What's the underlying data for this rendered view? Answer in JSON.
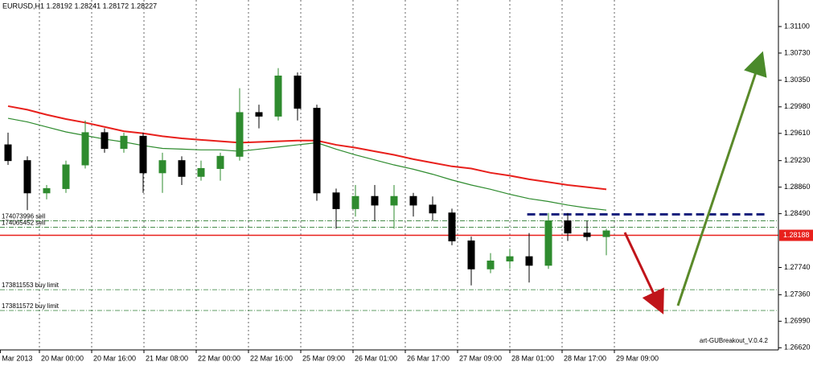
{
  "chart_data": {
    "type": "candlestick",
    "title": "EURUSD,H1  1.28192 1.28241 1.28172 1.28227",
    "footer": "art-GUBreakout_V.0.4.2",
    "bull_color": "#2e8b2e",
    "bear_color": "#000000",
    "open": [
      1.2945,
      1.2923,
      1.2878,
      1.2884,
      1.2917,
      1.2962,
      1.294,
      1.2957,
      1.2906,
      1.2923,
      1.2901,
      1.2912,
      1.2929,
      1.299,
      1.2985,
      1.3041,
      1.2996,
      1.2878,
      1.2856,
      1.2873,
      1.2861,
      1.2873,
      1.2861,
      1.285,
      1.2811,
      1.2772,
      1.2783,
      1.2789,
      1.2777,
      1.2839,
      1.2822,
      1.2817
    ],
    "high": [
      1.2962,
      1.2929,
      1.2889,
      1.2923,
      1.2979,
      1.2968,
      1.2962,
      1.2962,
      1.2934,
      1.2929,
      1.2923,
      1.2934,
      1.3024,
      1.3001,
      1.3052,
      1.3046,
      1.3001,
      1.2884,
      1.2889,
      1.2889,
      1.2889,
      1.2878,
      1.2873,
      1.2856,
      1.2817,
      1.2794,
      1.28,
      1.2822,
      1.285,
      1.285,
      1.2839,
      1.2828
    ],
    "low": [
      1.2917,
      1.2854,
      1.2869,
      1.2878,
      1.2912,
      1.2934,
      1.2934,
      1.2878,
      1.2878,
      1.2889,
      1.2895,
      1.2895,
      1.2923,
      1.2968,
      1.2979,
      1.2979,
      1.2867,
      1.2828,
      1.2845,
      1.2839,
      1.2828,
      1.2845,
      1.2839,
      1.2805,
      1.2749,
      1.2766,
      1.2772,
      1.2753,
      1.2772,
      1.2811,
      1.2811,
      1.2791
    ],
    "close": [
      1.2923,
      1.2878,
      1.2884,
      1.2917,
      1.2962,
      1.294,
      1.2957,
      1.2906,
      1.2923,
      1.2901,
      1.2912,
      1.2929,
      1.299,
      1.2985,
      1.3041,
      1.2996,
      1.2878,
      1.2856,
      1.2873,
      1.2861,
      1.2873,
      1.2861,
      1.285,
      1.2811,
      1.2772,
      1.2783,
      1.2789,
      1.2777,
      1.2839,
      1.2822,
      1.2817,
      1.2825
    ],
    "ma": [
      {
        "color": "#e8201c",
        "values": [
          1.2999,
          1.2994,
          1.2987,
          1.2981,
          1.2976,
          1.297,
          1.2964,
          1.2961,
          1.2957,
          1.2954,
          1.2952,
          1.295,
          1.2948,
          1.2949,
          1.295,
          1.2951,
          1.2951,
          1.2945,
          1.2941,
          1.2936,
          1.2931,
          1.2925,
          1.292,
          1.2915,
          1.2912,
          1.2906,
          1.2902,
          1.2897,
          1.2893,
          1.2889,
          1.2886,
          1.2883
        ]
      },
      {
        "color": "#2e8b2e",
        "values": [
          1.2982,
          1.2977,
          1.297,
          1.2963,
          1.2958,
          1.2953,
          1.2949,
          1.2944,
          1.294,
          1.2939,
          1.2938,
          1.2938,
          1.2936,
          1.2939,
          1.2942,
          1.2945,
          1.2948,
          1.2939,
          1.2931,
          1.2924,
          1.2917,
          1.2911,
          1.2904,
          1.2896,
          1.2889,
          1.2883,
          1.2876,
          1.287,
          1.2866,
          1.2861,
          1.2857,
          1.2854
        ]
      }
    ],
    "levels": [
      {
        "label": "174073996 sell",
        "value": 1.2839,
        "color": "#2e7d32"
      },
      {
        "label": "174065452 sell",
        "value": 1.283,
        "color": "#2e7d32"
      },
      {
        "label": "173811553 buy limit",
        "value": 1.2743,
        "color": "#2e7d32"
      },
      {
        "label": "173811572 buy limit",
        "value": 1.2714,
        "color": "#2e7d32"
      }
    ],
    "breakout_level": {
      "value": 1.2848,
      "color": "#1a237e"
    },
    "current_price": {
      "value": 1.28188,
      "color": "#e8201c"
    },
    "xlim": [
      -0.4167,
      39.9167
    ],
    "xticks": [
      {
        "value": -0.4,
        "label": "Mar 2013"
      },
      {
        "value": 1.625,
        "label": "20 Mar 00:00"
      },
      {
        "value": 4.333,
        "label": "20 Mar 16:00"
      },
      {
        "value": 7.042,
        "label": "21 Mar 08:00"
      },
      {
        "value": 9.75,
        "label": "22 Mar 00:00"
      },
      {
        "value": 12.458,
        "label": "22 Mar 16:00"
      },
      {
        "value": 15.167,
        "label": "25 Mar 09:00"
      },
      {
        "value": 17.875,
        "label": "26 Mar 01:00"
      },
      {
        "value": 20.583,
        "label": "26 Mar 17:00"
      },
      {
        "value": 23.292,
        "label": "27 Mar 09:00"
      },
      {
        "value": 26,
        "label": "28 Mar 01:00"
      },
      {
        "value": 28.708,
        "label": "28 Mar 17:00"
      },
      {
        "value": 31.417,
        "label": "29 Mar 09:00"
      }
    ],
    "ylim": [
      1.2659,
      1.3147
    ],
    "yticks": [
      {
        "value": 1.311,
        "label": "1.31100"
      },
      {
        "value": 1.3073,
        "label": "1.30730"
      },
      {
        "value": 1.3035,
        "label": "1.30350"
      },
      {
        "value": 1.2998,
        "label": "1.29980"
      },
      {
        "value": 1.2961,
        "label": "1.29610"
      },
      {
        "value": 1.2923,
        "label": "1.29230"
      },
      {
        "value": 1.2886,
        "label": "1.28860"
      },
      {
        "value": 1.2849,
        "label": "1.28490"
      },
      {
        "value": 1.2774,
        "label": "1.27740"
      },
      {
        "value": 1.2736,
        "label": "1.27360"
      },
      {
        "value": 1.2699,
        "label": "1.26990"
      },
      {
        "value": 1.2662,
        "label": "1.26620"
      }
    ],
    "grid": true
  }
}
